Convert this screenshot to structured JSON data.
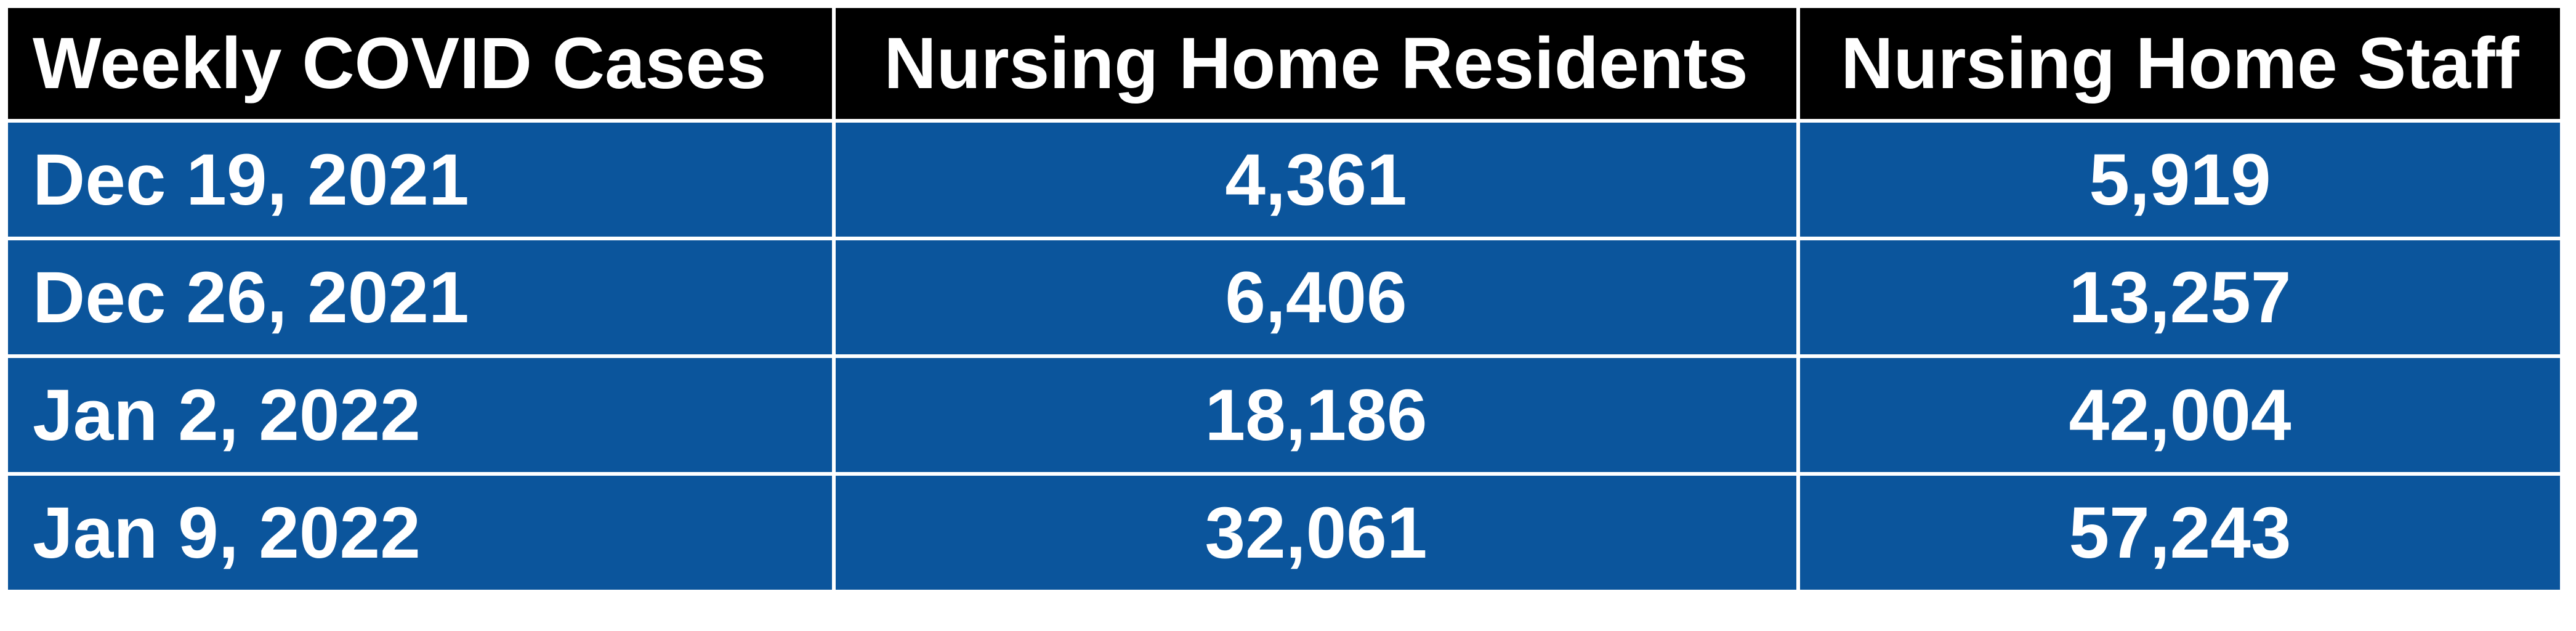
{
  "table": {
    "header": [
      "Weekly COVID Cases",
      "Nursing Home Residents",
      "Nursing Home Staff"
    ],
    "rows": [
      [
        "Dec 19, 2021",
        "4,361",
        "5,919"
      ],
      [
        "Dec 26, 2021",
        "6,406",
        "13,257"
      ],
      [
        "Jan 2, 2022",
        "18,186",
        "42,004"
      ],
      [
        "Jan 9, 2022",
        "32,061",
        "57,243"
      ]
    ]
  }
}
